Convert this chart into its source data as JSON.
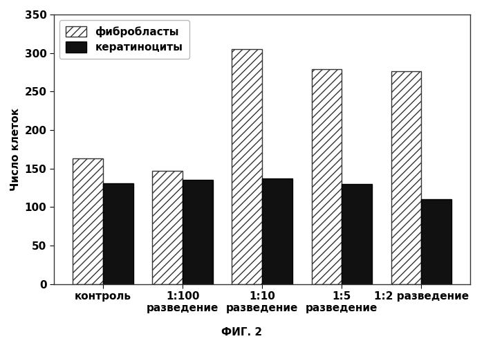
{
  "groups_line1": [
    "контроль",
    "1:100",
    "1:10",
    "1:5",
    "1:2 разведение"
  ],
  "groups_line2": [
    "",
    "разведение",
    "разведение",
    "разведение",
    ""
  ],
  "fibroblasts": [
    163,
    147,
    305,
    279,
    276
  ],
  "keratinocytes": [
    131,
    135,
    137,
    130,
    110
  ],
  "ylabel": "Число клеток",
  "fig_label": "ФИГ. 2",
  "legend_fibroblasts": "фибробласты",
  "legend_keratinocytes": "кератиноциты",
  "ylim": [
    0,
    350
  ],
  "yticks": [
    0,
    50,
    100,
    150,
    200,
    250,
    300,
    350
  ],
  "bar_width": 0.38,
  "bg_color": "#ffffff",
  "hatch_fibroblasts": "///",
  "fibroblast_facecolor": "#ffffff",
  "fibroblast_edgecolor": "#333333",
  "keratinocyte_facecolor": "#111111",
  "keratinocyte_edgecolor": "#000000",
  "tick_fontsize": 11,
  "ylabel_fontsize": 11,
  "legend_fontsize": 11
}
